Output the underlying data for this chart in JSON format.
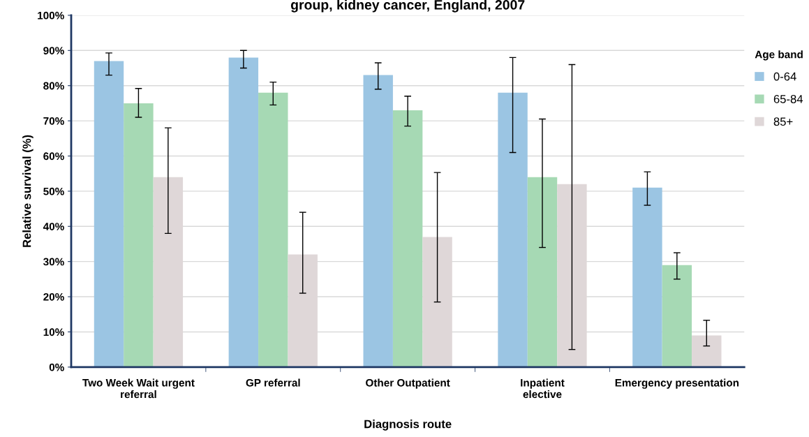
{
  "chart_data": {
    "type": "bar",
    "title": "group, kidney cancer, England, 2007",
    "xlabel": "Diagnosis route",
    "ylabel": "Relative survival (%)",
    "legend_title": "Age band",
    "categories": [
      "Two Week Wait urgent\nreferral",
      "GP referral",
      "Other Outpatient",
      "Inpatient\nelective",
      "Emergency presentation"
    ],
    "series": [
      {
        "name": "0-64",
        "color": "#9bc5e3",
        "values": [
          87,
          88,
          83,
          78,
          51
        ],
        "errors": [
          [
            83,
            89.3
          ],
          [
            85,
            90
          ],
          [
            79,
            86.5
          ],
          [
            61,
            88
          ],
          [
            46,
            55.5
          ]
        ]
      },
      {
        "name": "65-84",
        "color": "#a6d9b4",
        "values": [
          75,
          78,
          73,
          54,
          29
        ],
        "errors": [
          [
            71,
            79.2
          ],
          [
            74.5,
            81
          ],
          [
            68.5,
            77
          ],
          [
            34,
            70.5
          ],
          [
            25,
            32.5
          ]
        ]
      },
      {
        "name": "85+",
        "color": "#dfd7d8",
        "values": [
          54,
          32,
          37,
          52,
          9
        ],
        "errors": [
          [
            38,
            68
          ],
          [
            21,
            44
          ],
          [
            18.5,
            55.3
          ],
          [
            5,
            86
          ],
          [
            6,
            13.3
          ]
        ]
      }
    ],
    "ylim": [
      0,
      100
    ],
    "yticks": [
      {
        "value": 0,
        "label": "0%"
      },
      {
        "value": 10,
        "label": "10%"
      },
      {
        "value": 20,
        "label": "20%"
      },
      {
        "value": 30,
        "label": "30%"
      },
      {
        "value": 40,
        "label": "40%"
      },
      {
        "value": 50,
        "label": "50%"
      },
      {
        "value": 60,
        "label": "60%"
      },
      {
        "value": 70,
        "label": "70%"
      },
      {
        "value": 80,
        "label": "80%"
      },
      {
        "value": 90,
        "label": "90%"
      },
      {
        "value": 100,
        "label": "100%"
      }
    ],
    "grid": "y",
    "legend": "right"
  }
}
